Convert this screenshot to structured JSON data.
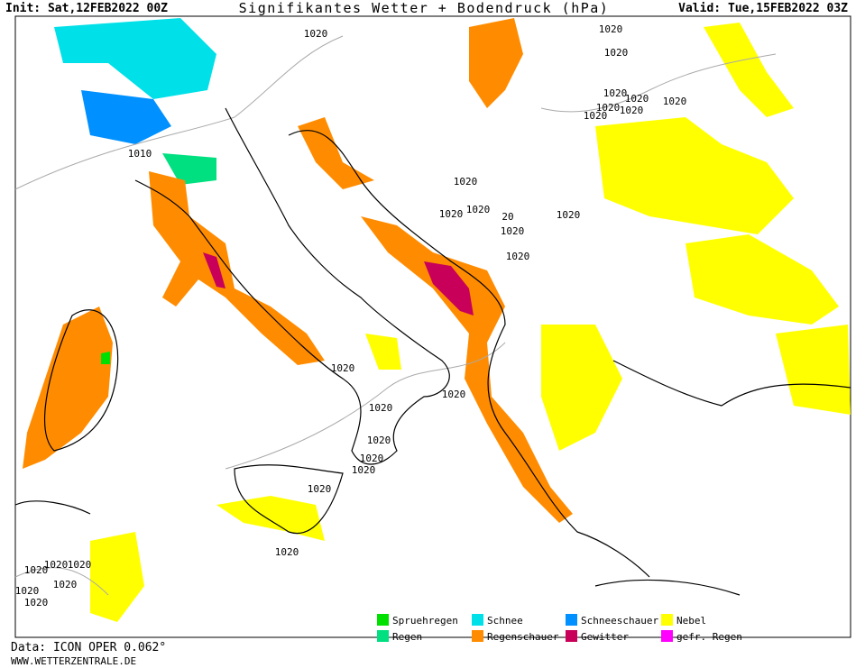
{
  "header": {
    "init": "Init: Sat,12FEB2022 00Z",
    "title": "Signifikantes Wetter + Bodendruck (hPa)",
    "valid": "Valid: Tue,15FEB2022 03Z"
  },
  "isobar_labels": [
    "1020",
    "1020",
    "1020",
    "1020",
    "1020",
    "1020",
    "1020",
    "1020",
    "1020",
    "1010",
    "1020",
    "1020",
    "1020",
    "20",
    "1020",
    "1020",
    "1020",
    "1020",
    "1020",
    "1020",
    "1020",
    "1020",
    "1020",
    "1020",
    "1020",
    "1020",
    "1020",
    "1020",
    "1020",
    "1020",
    "1020"
  ],
  "legend": [
    {
      "label": "Spruehregen",
      "color": "#00e000"
    },
    {
      "label": "Schnee",
      "color": "#00e0e8"
    },
    {
      "label": "Schneeschauer",
      "color": "#0090ff"
    },
    {
      "label": "Nebel",
      "color": "#ffff00"
    },
    {
      "label": "Regen",
      "color": "#00e080"
    },
    {
      "label": "Regenschauer",
      "color": "#ff8c00"
    },
    {
      "label": "Gewitter",
      "color": "#c8005a"
    },
    {
      "label": "gefr. Regen",
      "color": "#ff00ff"
    }
  ],
  "footer": {
    "model": "Data: ICON OPER 0.062°",
    "source": "WWW.WETTERZENTRALE.DE"
  }
}
